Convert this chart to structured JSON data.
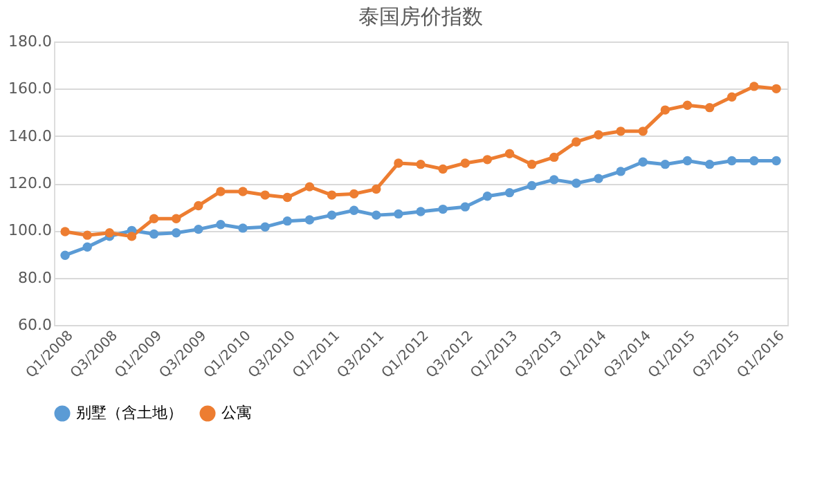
{
  "chart_data": {
    "type": "line",
    "title": "泰国房价指数",
    "categories": [
      "Q1/2008",
      null,
      "Q3/2008",
      null,
      "Q1/2009",
      null,
      "Q3/2009",
      null,
      "Q1/2010",
      null,
      "Q3/2010",
      null,
      "Q1/2011",
      null,
      "Q3/2011",
      null,
      "Q1/2012",
      null,
      "Q3/2012",
      null,
      "Q1/2013",
      null,
      "Q3/2013",
      null,
      "Q1/2014",
      null,
      "Q3/2014",
      null,
      "Q1/2015",
      null,
      "Q3/2015",
      null,
      "Q1/2016"
    ],
    "series": [
      {
        "name": "别墅（含土地）",
        "color": "#5b9bd5",
        "values": [
          89.5,
          93,
          97.5,
          100,
          98.5,
          99,
          100.5,
          102.5,
          101,
          101.5,
          104,
          104.5,
          106.5,
          108.5,
          106.5,
          107,
          108,
          109,
          110,
          114.5,
          116,
          119,
          121.5,
          120,
          122,
          125,
          129,
          128,
          129.5,
          128,
          129.5,
          129.5,
          129.5
        ]
      },
      {
        "name": "公寓",
        "color": "#ed7d31",
        "values": [
          99.5,
          98,
          99,
          97.5,
          105,
          105,
          110.5,
          116.5,
          116.5,
          115,
          114,
          118.5,
          115,
          115.5,
          117.5,
          128.5,
          128,
          126,
          128.5,
          130,
          132.5,
          128,
          131,
          137.5,
          140.5,
          142,
          142,
          151,
          153,
          152,
          156.5,
          161,
          160
        ]
      }
    ],
    "ylim": [
      60,
      180
    ],
    "yticks": [
      {
        "value": 60,
        "label": "60.0"
      },
      {
        "value": 80,
        "label": "80.0"
      },
      {
        "value": 100,
        "label": "100.0"
      },
      {
        "value": 120,
        "label": "120.0"
      },
      {
        "value": 140,
        "label": "140.0"
      },
      {
        "value": 160,
        "label": "160.0"
      },
      {
        "value": 180,
        "label": "180.0"
      }
    ],
    "grid": "y",
    "legend": "bottom",
    "marker": "circle",
    "line_style": "solid"
  }
}
